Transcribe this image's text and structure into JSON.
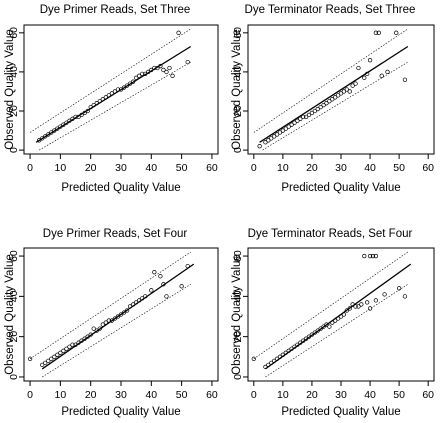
{
  "chart_data": [
    {
      "type": "scatter",
      "title": "Dye Primer Reads, Set Three",
      "xlabel": "Predicted Quality Value",
      "ylabel": "Observed Quality Value",
      "xlim": [
        -2,
        62
      ],
      "ylim": [
        -2,
        64
      ],
      "xticks": [
        0,
        10,
        20,
        30,
        40,
        50,
        60
      ],
      "yticks": [
        0,
        20,
        40,
        60
      ],
      "reference_lines": {
        "identity": [
          [
            2,
            4
          ],
          [
            53,
            53
          ]
        ],
        "upper": [
          [
            0,
            9
          ],
          [
            53,
            62
          ]
        ],
        "lower": [
          [
            3,
            0
          ],
          [
            53,
            45
          ]
        ]
      },
      "points": [
        [
          3,
          5
        ],
        [
          4,
          6
        ],
        [
          5,
          7
        ],
        [
          6,
          8
        ],
        [
          7,
          9
        ],
        [
          8,
          10
        ],
        [
          9,
          11
        ],
        [
          10,
          12
        ],
        [
          11,
          13
        ],
        [
          12,
          14
        ],
        [
          13,
          15
        ],
        [
          14,
          16
        ],
        [
          15,
          17
        ],
        [
          16,
          17
        ],
        [
          17,
          18
        ],
        [
          18,
          19
        ],
        [
          19,
          20
        ],
        [
          20,
          22
        ],
        [
          21,
          23
        ],
        [
          22,
          24
        ],
        [
          23,
          25
        ],
        [
          24,
          26
        ],
        [
          25,
          27
        ],
        [
          26,
          28
        ],
        [
          27,
          29
        ],
        [
          28,
          30
        ],
        [
          29,
          31
        ],
        [
          30,
          31
        ],
        [
          31,
          32
        ],
        [
          32,
          33
        ],
        [
          33,
          34
        ],
        [
          34,
          35
        ],
        [
          35,
          37
        ],
        [
          36,
          38
        ],
        [
          37,
          39
        ],
        [
          38,
          39
        ],
        [
          39,
          40
        ],
        [
          40,
          41
        ],
        [
          41,
          42
        ],
        [
          42,
          42
        ],
        [
          43,
          43
        ],
        [
          44,
          41
        ],
        [
          45,
          40
        ],
        [
          46,
          42
        ],
        [
          49,
          60
        ],
        [
          52,
          45
        ],
        [
          47,
          38
        ]
      ]
    },
    {
      "type": "scatter",
      "title": "Dye Terminator Reads, Set Three",
      "xlabel": "Predicted Quality Value",
      "ylabel": "Observed Quality Value",
      "xlim": [
        -2,
        62
      ],
      "ylim": [
        -2,
        64
      ],
      "xticks": [
        0,
        10,
        20,
        30,
        40,
        50,
        60
      ],
      "yticks": [
        0,
        20,
        40,
        60
      ],
      "reference_lines": {
        "identity": [
          [
            2,
            4
          ],
          [
            53,
            53
          ]
        ],
        "upper": [
          [
            0,
            9
          ],
          [
            53,
            62
          ]
        ],
        "lower": [
          [
            3,
            0
          ],
          [
            53,
            45
          ]
        ]
      },
      "points": [
        [
          2,
          2
        ],
        [
          4,
          4
        ],
        [
          5,
          5
        ],
        [
          6,
          6
        ],
        [
          7,
          7
        ],
        [
          8,
          8
        ],
        [
          9,
          9
        ],
        [
          10,
          10
        ],
        [
          11,
          11
        ],
        [
          12,
          12
        ],
        [
          13,
          13
        ],
        [
          14,
          14
        ],
        [
          15,
          15
        ],
        [
          16,
          16
        ],
        [
          17,
          17
        ],
        [
          18,
          17
        ],
        [
          19,
          18
        ],
        [
          20,
          19
        ],
        [
          21,
          20
        ],
        [
          22,
          21
        ],
        [
          23,
          22
        ],
        [
          24,
          23
        ],
        [
          25,
          24
        ],
        [
          26,
          25
        ],
        [
          27,
          26
        ],
        [
          28,
          27
        ],
        [
          29,
          28
        ],
        [
          30,
          29
        ],
        [
          31,
          30
        ],
        [
          32,
          31
        ],
        [
          33,
          30
        ],
        [
          34,
          33
        ],
        [
          35,
          34
        ],
        [
          36,
          42
        ],
        [
          38,
          37
        ],
        [
          40,
          46
        ],
        [
          42,
          60
        ],
        [
          43,
          60
        ],
        [
          44,
          38
        ],
        [
          46,
          40
        ],
        [
          49,
          60
        ],
        [
          52,
          36
        ],
        [
          39,
          39
        ]
      ]
    },
    {
      "type": "scatter",
      "title": "Dye Primer Reads, Set Four",
      "xlabel": "Predicted Quality Value",
      "ylabel": "Observed Quality Value",
      "xlim": [
        -2,
        62
      ],
      "ylim": [
        -2,
        64
      ],
      "xticks": [
        0,
        10,
        20,
        30,
        40,
        50,
        60
      ],
      "yticks": [
        0,
        20,
        40,
        60
      ],
      "reference_lines": {
        "identity": [
          [
            4,
            4
          ],
          [
            54,
            56
          ]
        ],
        "upper": [
          [
            0,
            9
          ],
          [
            53,
            62
          ]
        ],
        "lower": [
          [
            4,
            0
          ],
          [
            53,
            46
          ]
        ]
      },
      "points": [
        [
          0,
          9
        ],
        [
          4,
          6
        ],
        [
          5,
          7
        ],
        [
          6,
          8
        ],
        [
          7,
          9
        ],
        [
          8,
          10
        ],
        [
          9,
          11
        ],
        [
          10,
          12
        ],
        [
          11,
          13
        ],
        [
          12,
          14
        ],
        [
          13,
          15
        ],
        [
          14,
          16
        ],
        [
          15,
          16
        ],
        [
          16,
          17
        ],
        [
          17,
          18
        ],
        [
          18,
          19
        ],
        [
          19,
          20
        ],
        [
          20,
          21
        ],
        [
          21,
          24
        ],
        [
          22,
          23
        ],
        [
          23,
          24
        ],
        [
          24,
          26
        ],
        [
          25,
          27
        ],
        [
          26,
          28
        ],
        [
          27,
          28
        ],
        [
          28,
          29
        ],
        [
          29,
          30
        ],
        [
          30,
          31
        ],
        [
          31,
          32
        ],
        [
          32,
          33
        ],
        [
          33,
          35
        ],
        [
          34,
          36
        ],
        [
          35,
          37
        ],
        [
          36,
          38
        ],
        [
          37,
          39
        ],
        [
          38,
          40
        ],
        [
          40,
          43
        ],
        [
          41,
          52
        ],
        [
          43,
          50
        ],
        [
          45,
          40
        ],
        [
          50,
          45
        ],
        [
          52,
          55
        ],
        [
          44,
          46
        ]
      ]
    },
    {
      "type": "scatter",
      "title": "Dye Terminator Reads, Set Four",
      "xlabel": "Predicted Quality Value",
      "ylabel": "Observed Quality Value",
      "xlim": [
        -2,
        62
      ],
      "ylim": [
        -2,
        64
      ],
      "xticks": [
        0,
        10,
        20,
        30,
        40,
        50,
        60
      ],
      "yticks": [
        0,
        20,
        40,
        60
      ],
      "reference_lines": {
        "identity": [
          [
            4,
            4
          ],
          [
            54,
            56
          ]
        ],
        "upper": [
          [
            0,
            9
          ],
          [
            53,
            62
          ]
        ],
        "lower": [
          [
            4,
            0
          ],
          [
            53,
            46
          ]
        ]
      },
      "points": [
        [
          0,
          9
        ],
        [
          4,
          5
        ],
        [
          5,
          6
        ],
        [
          6,
          7
        ],
        [
          7,
          8
        ],
        [
          8,
          9
        ],
        [
          9,
          10
        ],
        [
          10,
          11
        ],
        [
          11,
          12
        ],
        [
          12,
          13
        ],
        [
          13,
          14
        ],
        [
          14,
          15
        ],
        [
          15,
          16
        ],
        [
          16,
          17
        ],
        [
          17,
          18
        ],
        [
          18,
          19
        ],
        [
          19,
          20
        ],
        [
          20,
          21
        ],
        [
          21,
          22
        ],
        [
          22,
          23
        ],
        [
          23,
          24
        ],
        [
          24,
          25
        ],
        [
          25,
          26
        ],
        [
          26,
          25
        ],
        [
          27,
          27
        ],
        [
          28,
          28
        ],
        [
          29,
          29
        ],
        [
          30,
          30
        ],
        [
          31,
          31
        ],
        [
          32,
          33
        ],
        [
          33,
          34
        ],
        [
          34,
          36
        ],
        [
          35,
          35
        ],
        [
          36,
          35
        ],
        [
          37,
          36
        ],
        [
          38,
          60
        ],
        [
          40,
          60
        ],
        [
          41,
          60
        ],
        [
          42,
          60
        ],
        [
          40,
          34
        ],
        [
          42,
          38
        ],
        [
          45,
          41
        ],
        [
          50,
          44
        ],
        [
          52,
          40
        ],
        [
          39,
          37
        ]
      ]
    }
  ]
}
